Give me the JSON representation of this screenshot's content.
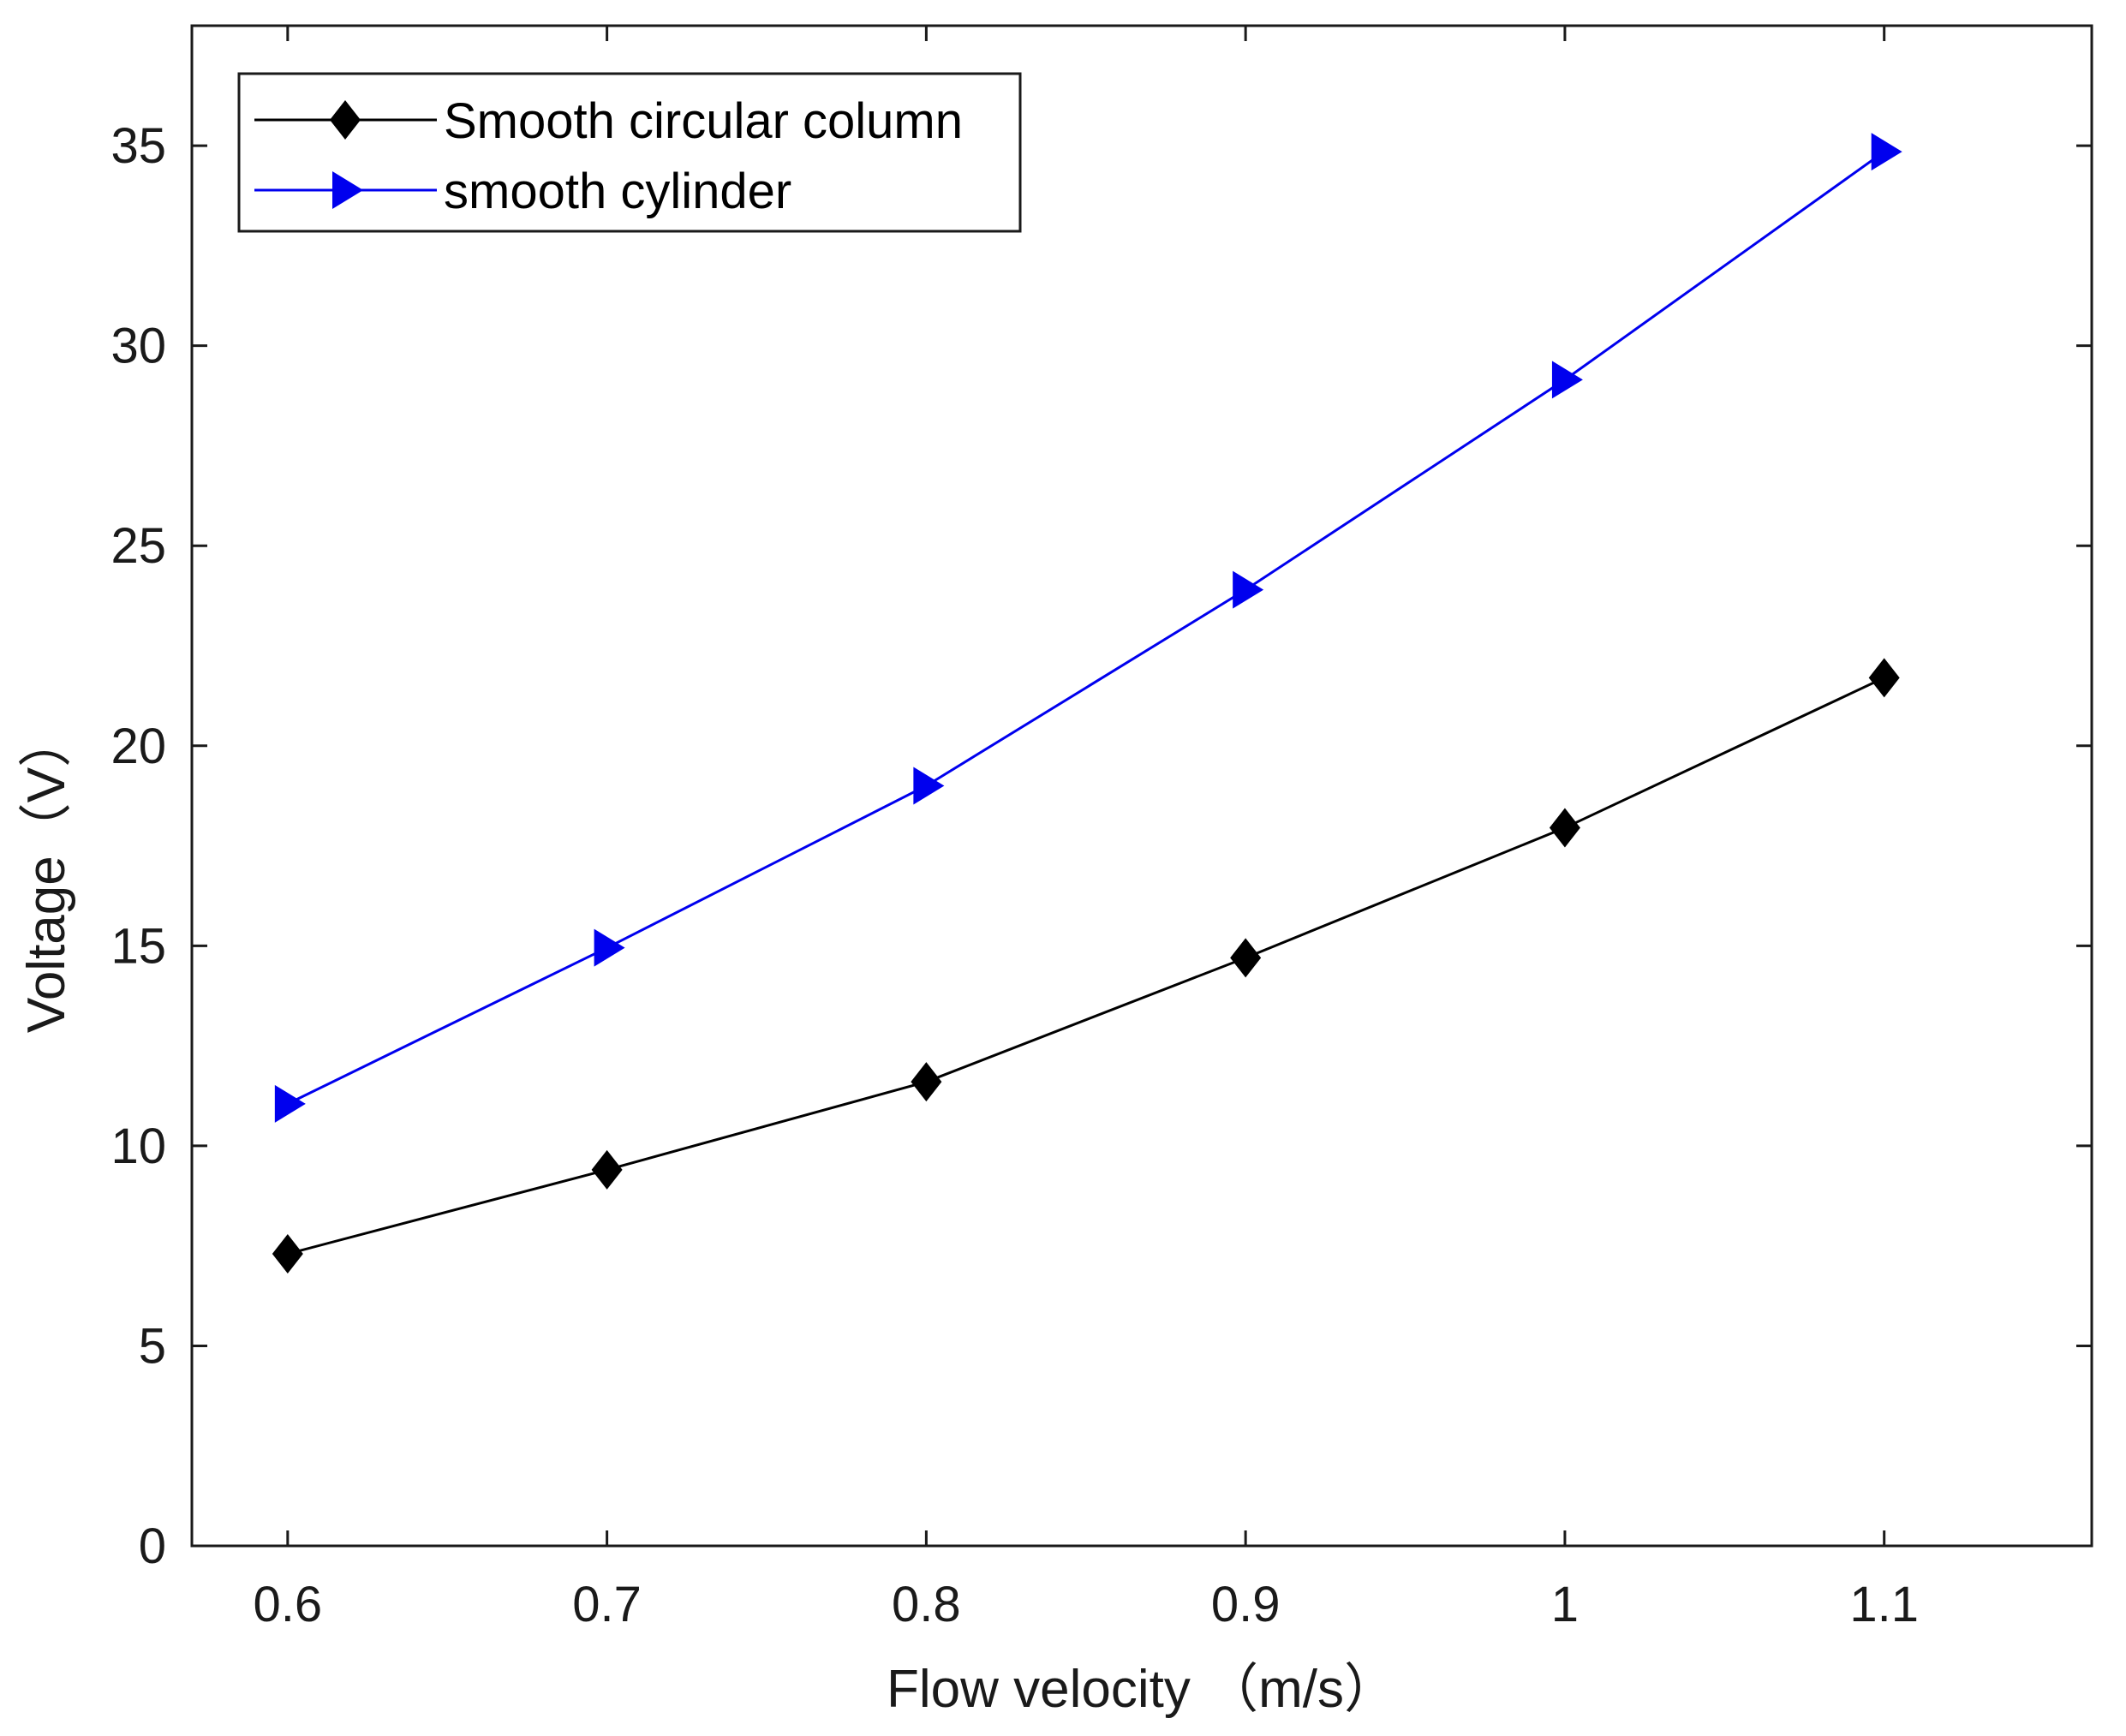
{
  "chart_data": {
    "type": "line",
    "title": "",
    "xlabel": "Flow velocity （m/s）",
    "ylabel": "Voltage（V）",
    "x": [
      0.6,
      0.7,
      0.8,
      0.9,
      1.0,
      1.1
    ],
    "x_tick_labels": [
      "0.6",
      "0.7",
      "0.8",
      "0.9",
      "1",
      "1.1"
    ],
    "xlim": [
      0.57,
      1.165
    ],
    "ylim": [
      0,
      38
    ],
    "y_ticks": [
      0,
      5,
      10,
      15,
      20,
      25,
      30,
      35
    ],
    "y_tick_labels": [
      "0",
      "5",
      "10",
      "15",
      "20",
      "25",
      "30",
      "35"
    ],
    "grid": false,
    "legend_position": "top-left",
    "series": [
      {
        "name": "Smooth circular column",
        "values": [
          7.3,
          9.4,
          11.6,
          14.7,
          17.95,
          21.7
        ],
        "color": "#000000",
        "marker": "diamond"
      },
      {
        "name": "smooth cylinder",
        "values": [
          11.05,
          14.95,
          19.0,
          23.9,
          29.15,
          34.85
        ],
        "color": "#0000ee",
        "marker": "triangle-right"
      }
    ]
  }
}
